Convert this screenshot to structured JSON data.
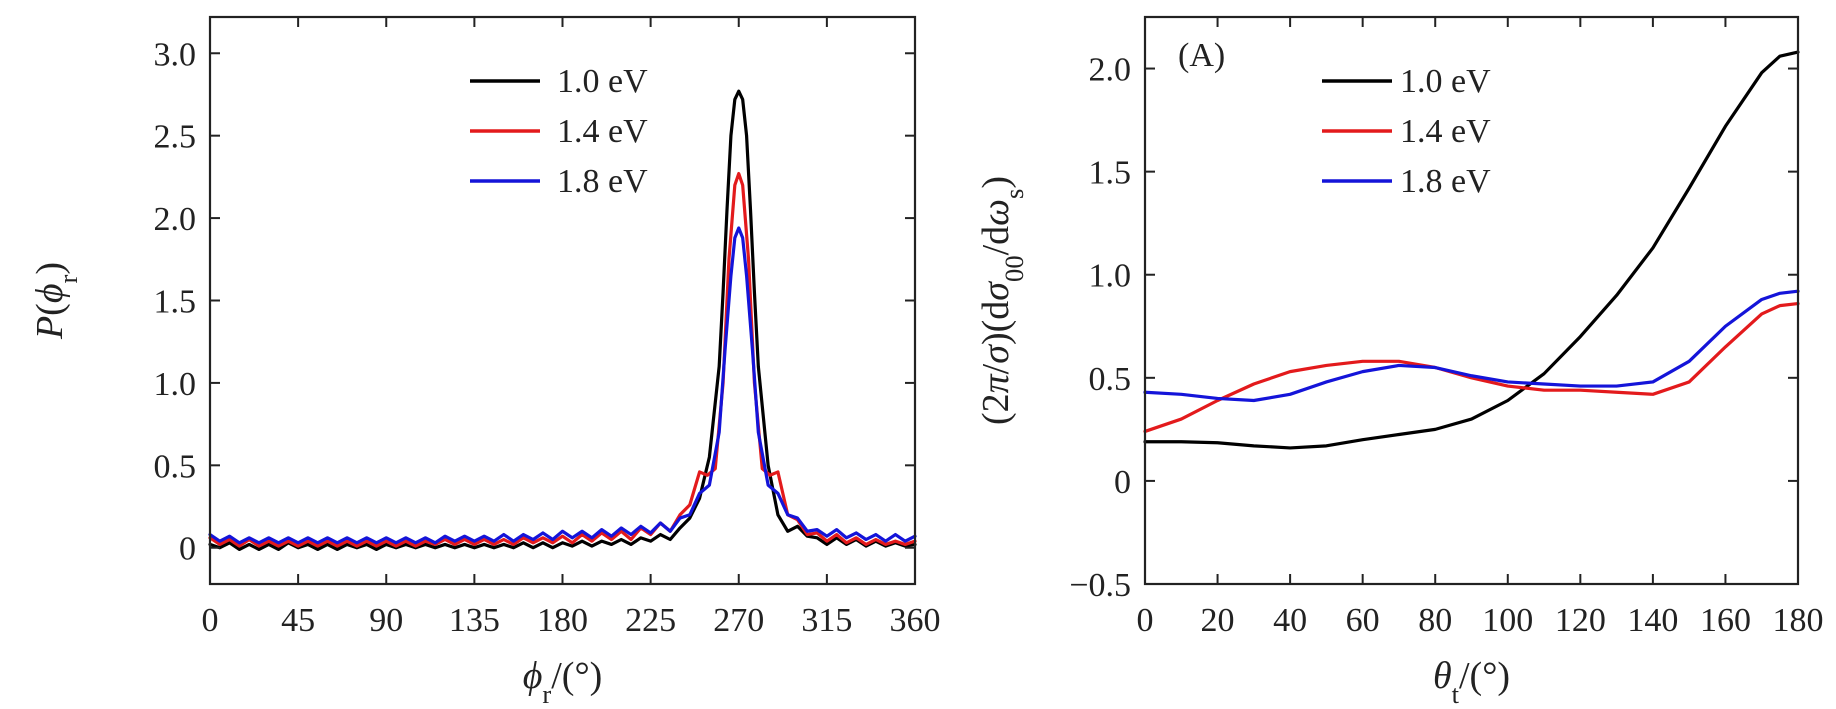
{
  "chart_data": [
    {
      "type": "line",
      "id": "left",
      "panel_label": "",
      "xlabel_parts": [
        {
          "text": "ϕ",
          "italic": true
        },
        {
          "text": "r",
          "sub": true
        },
        {
          "text": "/(°)"
        }
      ],
      "ylabel_parts": [
        {
          "text": "P",
          "italic": true
        },
        {
          "text": "("
        },
        {
          "text": "ϕ",
          "italic": true
        },
        {
          "text": "r",
          "sub": true
        },
        {
          "text": ")"
        }
      ],
      "xlim": [
        0,
        360
      ],
      "ylim": [
        -0.22,
        3.22
      ],
      "xticks": [
        0,
        45,
        90,
        135,
        180,
        225,
        270,
        315,
        360
      ],
      "xtick_labels": [
        "0",
        "45",
        "90",
        "135",
        "180",
        "225",
        "270",
        "315",
        "360"
      ],
      "yticks": [
        0,
        0.5,
        1.0,
        1.5,
        2.0,
        2.5,
        3.0
      ],
      "ytick_labels": [
        "0",
        "0.5",
        "1.0",
        "1.5",
        "2.0",
        "2.5",
        "3.0"
      ],
      "legend_position": "top-center",
      "series": [
        {
          "name": "1.0 eV",
          "color": "#000000",
          "x": [
            0,
            5,
            10,
            15,
            20,
            25,
            30,
            35,
            40,
            45,
            50,
            55,
            60,
            65,
            70,
            75,
            80,
            85,
            90,
            95,
            100,
            105,
            110,
            115,
            120,
            125,
            130,
            135,
            140,
            145,
            150,
            155,
            160,
            165,
            170,
            175,
            180,
            185,
            190,
            195,
            200,
            205,
            210,
            215,
            220,
            225,
            230,
            235,
            240,
            245,
            250,
            255,
            260,
            262,
            264,
            266,
            268,
            270,
            272,
            274,
            276,
            278,
            280,
            285,
            290,
            295,
            300,
            305,
            310,
            315,
            320,
            325,
            330,
            335,
            340,
            345,
            350,
            355,
            360
          ],
          "y": [
            0.02,
            0.0,
            0.03,
            -0.01,
            0.02,
            -0.01,
            0.02,
            -0.01,
            0.03,
            0.0,
            0.02,
            -0.01,
            0.02,
            -0.01,
            0.02,
            0.0,
            0.02,
            -0.01,
            0.02,
            0.0,
            0.02,
            0.0,
            0.02,
            0.0,
            0.02,
            0.0,
            0.02,
            0.0,
            0.02,
            0.0,
            0.02,
            0.0,
            0.03,
            0.0,
            0.03,
            0.0,
            0.03,
            0.01,
            0.04,
            0.01,
            0.04,
            0.02,
            0.05,
            0.02,
            0.06,
            0.04,
            0.08,
            0.05,
            0.12,
            0.18,
            0.3,
            0.55,
            1.1,
            1.55,
            2.05,
            2.5,
            2.72,
            2.77,
            2.72,
            2.5,
            2.05,
            1.55,
            1.1,
            0.5,
            0.2,
            0.1,
            0.13,
            0.07,
            0.06,
            0.02,
            0.06,
            0.02,
            0.05,
            0.01,
            0.04,
            0.01,
            0.03,
            0.01,
            0.02
          ]
        },
        {
          "name": "1.4 eV",
          "color": "#e31a1c",
          "x": [
            0,
            5,
            10,
            15,
            20,
            25,
            30,
            35,
            40,
            45,
            50,
            55,
            60,
            65,
            70,
            75,
            80,
            85,
            90,
            95,
            100,
            105,
            110,
            115,
            120,
            125,
            130,
            135,
            140,
            145,
            150,
            155,
            160,
            165,
            170,
            175,
            180,
            185,
            190,
            195,
            200,
            205,
            210,
            215,
            220,
            225,
            230,
            235,
            240,
            245,
            250,
            254,
            258,
            262,
            265,
            268,
            270,
            272,
            275,
            278,
            282,
            286,
            290,
            295,
            300,
            305,
            310,
            315,
            320,
            325,
            330,
            335,
            340,
            345,
            350,
            355,
            360
          ],
          "y": [
            0.06,
            0.02,
            0.05,
            0.01,
            0.05,
            0.01,
            0.04,
            0.01,
            0.04,
            0.01,
            0.04,
            0.01,
            0.04,
            0.01,
            0.04,
            0.01,
            0.04,
            0.01,
            0.04,
            0.01,
            0.04,
            0.01,
            0.04,
            0.02,
            0.05,
            0.02,
            0.05,
            0.02,
            0.05,
            0.02,
            0.05,
            0.02,
            0.06,
            0.03,
            0.06,
            0.03,
            0.07,
            0.03,
            0.08,
            0.04,
            0.09,
            0.05,
            0.1,
            0.05,
            0.12,
            0.08,
            0.15,
            0.1,
            0.2,
            0.26,
            0.46,
            0.44,
            0.48,
            1.0,
            1.75,
            2.2,
            2.27,
            2.2,
            1.75,
            1.0,
            0.48,
            0.44,
            0.46,
            0.2,
            0.17,
            0.08,
            0.09,
            0.04,
            0.08,
            0.03,
            0.06,
            0.02,
            0.05,
            0.02,
            0.04,
            0.02,
            0.04
          ]
        },
        {
          "name": "1.8 eV",
          "color": "#1414d9",
          "x": [
            0,
            5,
            10,
            15,
            20,
            25,
            30,
            35,
            40,
            45,
            50,
            55,
            60,
            65,
            70,
            75,
            80,
            85,
            90,
            95,
            100,
            105,
            110,
            115,
            120,
            125,
            130,
            135,
            140,
            145,
            150,
            155,
            160,
            165,
            170,
            175,
            180,
            185,
            190,
            195,
            200,
            205,
            210,
            215,
            220,
            225,
            230,
            235,
            240,
            245,
            250,
            255,
            260,
            263,
            266,
            268,
            270,
            272,
            274,
            277,
            280,
            285,
            290,
            295,
            300,
            305,
            310,
            315,
            320,
            325,
            330,
            335,
            340,
            345,
            350,
            355,
            360
          ],
          "y": [
            0.08,
            0.04,
            0.07,
            0.03,
            0.06,
            0.03,
            0.06,
            0.03,
            0.06,
            0.03,
            0.06,
            0.03,
            0.06,
            0.03,
            0.06,
            0.03,
            0.06,
            0.03,
            0.06,
            0.03,
            0.06,
            0.03,
            0.06,
            0.03,
            0.07,
            0.04,
            0.07,
            0.04,
            0.07,
            0.04,
            0.08,
            0.04,
            0.08,
            0.05,
            0.09,
            0.05,
            0.1,
            0.06,
            0.1,
            0.06,
            0.11,
            0.07,
            0.12,
            0.08,
            0.13,
            0.09,
            0.15,
            0.1,
            0.18,
            0.2,
            0.33,
            0.38,
            0.7,
            1.2,
            1.65,
            1.88,
            1.94,
            1.88,
            1.65,
            1.2,
            0.7,
            0.38,
            0.33,
            0.2,
            0.18,
            0.1,
            0.11,
            0.07,
            0.11,
            0.06,
            0.09,
            0.05,
            0.08,
            0.04,
            0.08,
            0.04,
            0.07
          ]
        }
      ]
    },
    {
      "type": "line",
      "id": "right",
      "panel_label": "(A)",
      "xlabel_parts": [
        {
          "text": "θ",
          "italic": true
        },
        {
          "text": "t",
          "sub": true
        },
        {
          "text": "/(°)"
        }
      ],
      "ylabel_parts": [
        {
          "text": "(2"
        },
        {
          "text": "π",
          "italic": true
        },
        {
          "text": "/"
        },
        {
          "text": "σ",
          "italic": true
        },
        {
          "text": ")(d"
        },
        {
          "text": "σ",
          "italic": true
        },
        {
          "text": "00",
          "sub": true
        },
        {
          "text": "/d"
        },
        {
          "text": "ω",
          "italic": true
        },
        {
          "text": "s",
          "sub": true
        },
        {
          "text": ")"
        }
      ],
      "xlim": [
        0,
        180
      ],
      "ylim": [
        -0.5,
        2.25
      ],
      "xticks": [
        0,
        20,
        40,
        60,
        80,
        100,
        120,
        140,
        160,
        180
      ],
      "xtick_labels": [
        "0",
        "20",
        "40",
        "60",
        "80",
        "100",
        "120",
        "140",
        "160",
        "180"
      ],
      "yticks": [
        -0.5,
        0,
        0.5,
        1.0,
        1.5,
        2.0
      ],
      "ytick_labels": [
        "−0.5",
        "0",
        "0.5",
        "1.0",
        "1.5",
        "2.0"
      ],
      "legend_position": "top-center",
      "series": [
        {
          "name": "1.0 eV",
          "color": "#000000",
          "x": [
            0,
            10,
            20,
            30,
            40,
            50,
            60,
            70,
            80,
            90,
            100,
            110,
            120,
            130,
            140,
            150,
            160,
            170,
            175,
            180
          ],
          "y": [
            0.19,
            0.19,
            0.185,
            0.17,
            0.16,
            0.17,
            0.2,
            0.225,
            0.25,
            0.3,
            0.39,
            0.52,
            0.7,
            0.9,
            1.13,
            1.42,
            1.72,
            1.98,
            2.06,
            2.08
          ]
        },
        {
          "name": "1.4 eV",
          "color": "#e31a1c",
          "x": [
            0,
            10,
            20,
            30,
            40,
            50,
            60,
            70,
            80,
            90,
            100,
            110,
            120,
            130,
            140,
            150,
            160,
            170,
            175,
            180
          ],
          "y": [
            0.24,
            0.3,
            0.39,
            0.47,
            0.53,
            0.56,
            0.58,
            0.58,
            0.55,
            0.5,
            0.46,
            0.44,
            0.44,
            0.43,
            0.42,
            0.48,
            0.65,
            0.81,
            0.85,
            0.86
          ]
        },
        {
          "name": "1.8 eV",
          "color": "#1414d9",
          "x": [
            0,
            10,
            20,
            30,
            40,
            50,
            60,
            70,
            80,
            90,
            100,
            110,
            120,
            130,
            140,
            150,
            160,
            170,
            175,
            180
          ],
          "y": [
            0.43,
            0.42,
            0.4,
            0.39,
            0.42,
            0.48,
            0.53,
            0.56,
            0.55,
            0.51,
            0.48,
            0.47,
            0.46,
            0.46,
            0.48,
            0.58,
            0.75,
            0.88,
            0.91,
            0.92
          ]
        }
      ]
    }
  ]
}
